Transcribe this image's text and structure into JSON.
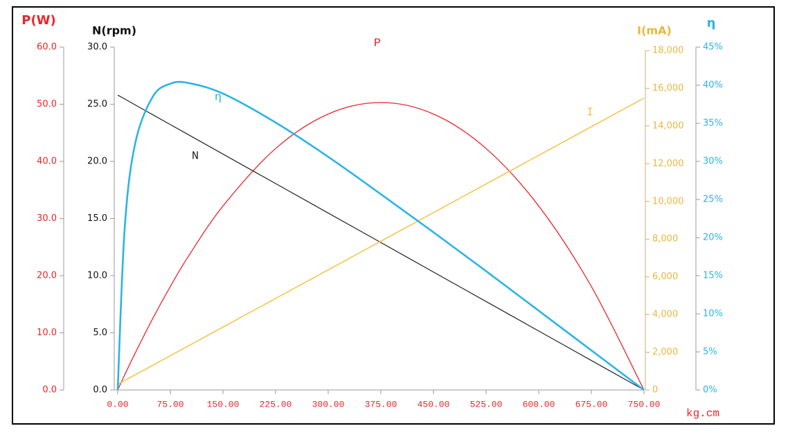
{
  "chart_data": {
    "type": "line",
    "x_label": "kg.cm",
    "y_label": "P(W)",
    "y2_label": "N(rpm)",
    "y3_label": "I(mA)",
    "y4_label": "η",
    "x": [
      0,
      10,
      25,
      50,
      75,
      100,
      150,
      225,
      300,
      375,
      450,
      525,
      600,
      675,
      750
    ],
    "xlim": [
      0,
      750
    ],
    "xticks": [
      {
        "value": 0,
        "label": "0.00"
      },
      {
        "value": 75,
        "label": "75.00"
      },
      {
        "value": 150,
        "label": "150.00"
      },
      {
        "value": 225,
        "label": "225.00"
      },
      {
        "value": 300,
        "label": "300.00"
      },
      {
        "value": 375,
        "label": "375.00"
      },
      {
        "value": 450,
        "label": "450.00"
      },
      {
        "value": 525,
        "label": "525.00"
      },
      {
        "value": 600,
        "label": "600.00"
      },
      {
        "value": 675,
        "label": "675.00"
      },
      {
        "value": 750,
        "label": "750.00"
      }
    ],
    "ylim": [
      0,
      60
    ],
    "yticks": [
      {
        "value": 0,
        "label": "0.0"
      },
      {
        "value": 10,
        "label": "10.0"
      },
      {
        "value": 20,
        "label": "20.0"
      },
      {
        "value": 30,
        "label": "30.0"
      },
      {
        "value": 40,
        "label": "40.0"
      },
      {
        "value": 50,
        "label": "50.0"
      },
      {
        "value": 60,
        "label": "60.0"
      }
    ],
    "y2lim": [
      0,
      30
    ],
    "y2ticks": [
      {
        "value": 0,
        "label": "0.0"
      },
      {
        "value": 5,
        "label": "5.0"
      },
      {
        "value": 10,
        "label": "10.0"
      },
      {
        "value": 15,
        "label": "15.0"
      },
      {
        "value": 20,
        "label": "20.0"
      },
      {
        "value": 25,
        "label": "25.0"
      },
      {
        "value": 30,
        "label": "30.0"
      }
    ],
    "y3lim": [
      0,
      18000
    ],
    "y3ticks": [
      0,
      {
        "value": 2000,
        "label": "2,000"
      },
      {
        "value": 4000,
        "label": "4,000"
      },
      {
        "value": 6000,
        "label": "6,000"
      },
      {
        "value": 8000,
        "label": "8,000"
      },
      {
        "value": 10000,
        "label": "10,000"
      },
      {
        "value": 12000,
        "label": "12,000"
      },
      {
        "value": 14000,
        "label": "14,000"
      },
      {
        "value": 16000,
        "label": "16,000"
      },
      {
        "value": 18000,
        "label": "18,000"
      }
    ],
    "y4lim": [
      0,
      45
    ],
    "y4ticks": [
      {
        "value": 0,
        "label": "0%"
      },
      {
        "value": 5,
        "label": "5%"
      },
      {
        "value": 10,
        "label": "10%"
      },
      {
        "value": 15,
        "label": "15%"
      },
      {
        "value": 20,
        "label": "20%"
      },
      {
        "value": 25,
        "label": "25%"
      },
      {
        "value": 30,
        "label": "30%"
      },
      {
        "value": 35,
        "label": "35%"
      },
      {
        "value": 40,
        "label": "40%"
      },
      {
        "value": 45,
        "label": "45%"
      }
    ],
    "series": [
      {
        "name": "P",
        "axis": "y",
        "color": "#e8262b",
        "values": [
          0,
          2.65,
          6.48,
          12.52,
          18.11,
          23.25,
          32.19,
          42.25,
          48.29,
          50.3,
          48.29,
          42.25,
          32.19,
          18.11,
          0
        ]
      },
      {
        "name": "N",
        "axis": "y2",
        "color": "#222222",
        "values": [
          25.8,
          25.46,
          24.94,
          24.08,
          23.22,
          22.36,
          20.64,
          18.06,
          15.48,
          12.9,
          10.32,
          7.74,
          5.16,
          2.58,
          0
        ]
      },
      {
        "name": "I",
        "axis": "y3",
        "color": "#f5c342",
        "values": [
          300,
          502,
          806,
          1312,
          1818,
          2324,
          3336,
          4854,
          6372,
          7890,
          9408,
          10926,
          12444,
          13962,
          15480
        ]
      },
      {
        "name": "η",
        "axis": "y4",
        "color": "#2ab4e6",
        "values": [
          0,
          21.3,
          32.4,
          38.5,
          40.2,
          40.3,
          38.9,
          35.1,
          30.6,
          25.7,
          20.7,
          15.6,
          10.4,
          5.2,
          0
        ]
      }
    ]
  }
}
